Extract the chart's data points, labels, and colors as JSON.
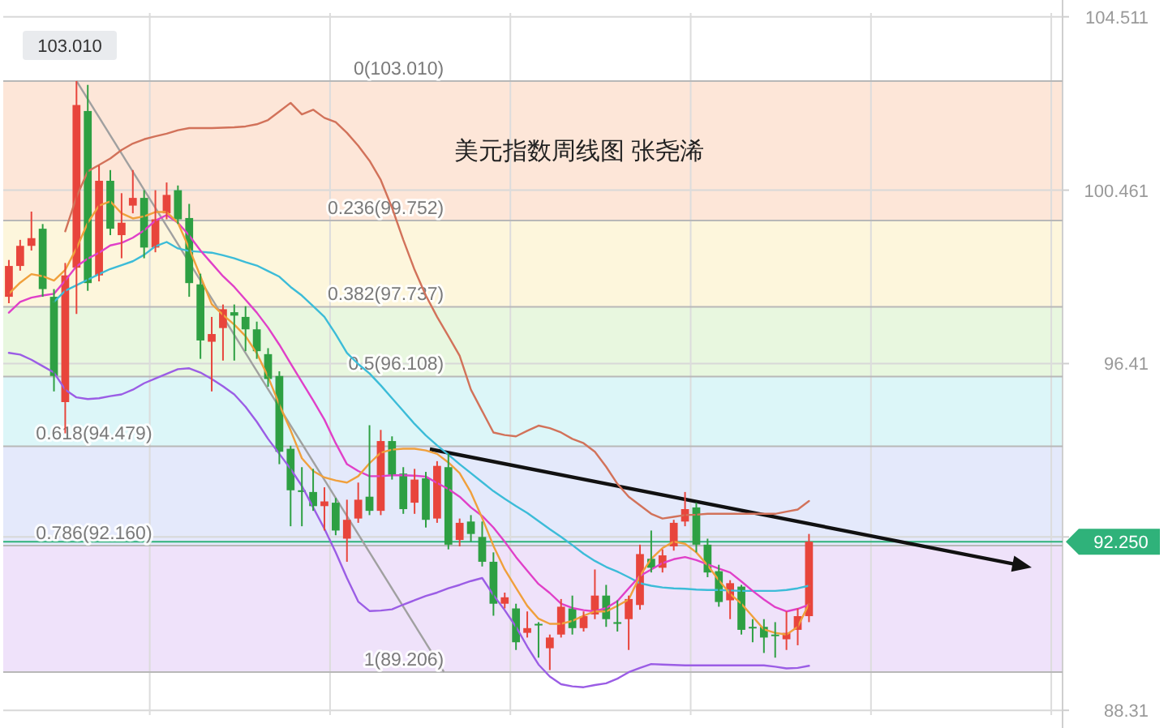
{
  "chart_data": {
    "type": "candlestick",
    "title": "美元指数周线图 张尧浠",
    "categories": [
      null,
      null,
      null,
      null,
      null,
      null,
      null,
      null,
      null,
      null,
      null,
      null,
      null,
      null,
      null,
      null,
      null,
      null,
      null,
      null,
      null,
      null,
      null,
      null,
      null,
      null,
      null,
      null,
      null,
      null,
      null,
      null,
      null,
      null,
      null,
      null,
      null,
      null,
      null,
      null,
      null,
      null,
      null,
      null,
      null,
      null,
      null,
      null,
      null,
      null,
      null,
      null,
      null,
      null,
      null,
      null,
      null,
      null,
      null,
      null,
      null,
      null,
      null,
      null,
      null,
      null,
      null,
      null,
      null,
      null,
      null,
      null,
      null,
      null,
      null,
      null,
      null,
      null,
      null,
      null,
      null,
      null,
      null,
      null,
      null,
      null,
      null,
      null,
      null,
      null,
      null,
      null,
      null,
      null
    ],
    "ohlc": [
      [
        97.97,
        98.83,
        97.82,
        98.69
      ],
      [
        98.69,
        99.3,
        98.58,
        99.16
      ],
      [
        99.16,
        99.96,
        99.05,
        99.34
      ],
      [
        99.56,
        99.67,
        97.97,
        98.15
      ],
      [
        97.97,
        98.15,
        95.76,
        96.12
      ],
      [
        95.51,
        98.76,
        94.78,
        98.47
      ],
      [
        98.65,
        103.01,
        97.57,
        102.45
      ],
      [
        102.31,
        102.92,
        98.11,
        98.29
      ],
      [
        98.47,
        101.04,
        98.33,
        100.68
      ],
      [
        100.68,
        100.93,
        99.41,
        99.56
      ],
      [
        99.41,
        100.39,
        98.87,
        99.7
      ],
      [
        100.1,
        100.93,
        99.92,
        100.28
      ],
      [
        100.28,
        100.46,
        98.87,
        99.12
      ],
      [
        99.12,
        100.46,
        99.01,
        99.78
      ],
      [
        99.92,
        100.64,
        99.78,
        100.35
      ],
      [
        100.46,
        100.57,
        99.67,
        99.78
      ],
      [
        99.81,
        100.14,
        97.97,
        98.29
      ],
      [
        98.26,
        98.51,
        96.52,
        96.95
      ],
      [
        96.92,
        97.5,
        95.76,
        97.1
      ],
      [
        97.24,
        97.79,
        96.48,
        97.68
      ],
      [
        97.61,
        97.79,
        96.48,
        97.53
      ],
      [
        97.5,
        97.75,
        96.7,
        97.21
      ],
      [
        97.21,
        97.39,
        96.52,
        96.7
      ],
      [
        96.63,
        96.77,
        95.87,
        96.05
      ],
      [
        96.12,
        96.23,
        94.06,
        94.35
      ],
      [
        94.42,
        94.49,
        92.61,
        93.45
      ],
      [
        93.45,
        93.99,
        92.61,
        93.41
      ],
      [
        93.41,
        93.95,
        92.97,
        93.08
      ],
      [
        93.08,
        93.52,
        92.51,
        93.19
      ],
      [
        93.16,
        93.27,
        92.4,
        92.51
      ],
      [
        92.32,
        93.23,
        91.78,
        92.76
      ],
      [
        92.79,
        93.63,
        92.69,
        93.23
      ],
      [
        93.3,
        94.97,
        92.87,
        92.97
      ],
      [
        92.97,
        94.86,
        92.87,
        94.6
      ],
      [
        94.6,
        94.71,
        93.7,
        93.81
      ],
      [
        93.84,
        93.99,
        92.9,
        93.01
      ],
      [
        93.16,
        93.95,
        92.9,
        93.7
      ],
      [
        93.73,
        93.88,
        92.58,
        92.76
      ],
      [
        92.79,
        94.13,
        92.69,
        94.02
      ],
      [
        93.99,
        94.31,
        92.07,
        92.18
      ],
      [
        92.29,
        92.79,
        92.14,
        92.69
      ],
      [
        92.72,
        92.87,
        92.25,
        92.43
      ],
      [
        92.36,
        92.72,
        91.67,
        91.78
      ],
      [
        91.78,
        92.0,
        90.52,
        90.8
      ],
      [
        90.8,
        91.06,
        90.69,
        90.95
      ],
      [
        90.69,
        90.8,
        89.72,
        89.9
      ],
      [
        90.12,
        90.62,
        90.01,
        90.23
      ],
      [
        90.33,
        90.37,
        89.54,
        90.3
      ],
      [
        89.76,
        90.08,
        89.25,
        90.01
      ],
      [
        90.08,
        90.91,
        90.01,
        90.73
      ],
      [
        90.69,
        90.99,
        90.08,
        90.23
      ],
      [
        90.23,
        90.62,
        90.15,
        90.51
      ],
      [
        90.55,
        91.6,
        90.44,
        90.99
      ],
      [
        90.99,
        91.24,
        90.26,
        90.44
      ],
      [
        90.37,
        90.88,
        90.15,
        90.33
      ],
      [
        90.44,
        90.99,
        89.72,
        90.91
      ],
      [
        90.77,
        92.18,
        90.66,
        91.96
      ],
      [
        91.85,
        92.51,
        91.53,
        91.64
      ],
      [
        91.64,
        92.07,
        91.53,
        91.93
      ],
      [
        92.14,
        92.76,
        92.04,
        92.69
      ],
      [
        92.72,
        93.41,
        92.61,
        93.01
      ],
      [
        93.05,
        93.16,
        92.0,
        92.18
      ],
      [
        92.18,
        92.32,
        91.42,
        91.53
      ],
      [
        91.56,
        91.71,
        90.73,
        90.84
      ],
      [
        90.88,
        91.35,
        90.44,
        91.28
      ],
      [
        91.2,
        91.24,
        90.08,
        90.19
      ],
      [
        90.26,
        90.44,
        89.9,
        90.23
      ],
      [
        90.26,
        90.44,
        89.65,
        90.01
      ],
      [
        90.08,
        90.37,
        89.54,
        90.05
      ],
      [
        89.97,
        90.62,
        89.72,
        90.12
      ],
      [
        90.19,
        90.69,
        89.83,
        90.51
      ],
      [
        90.51,
        92.43,
        90.37,
        92.25
      ],
      null,
      null,
      null,
      null,
      null,
      null,
      null,
      null,
      null,
      null,
      null,
      null,
      null,
      null,
      null,
      null,
      null,
      null,
      null,
      null,
      null,
      null
    ],
    "colors": [
      "#e8453c",
      "#e8453c",
      "#e8453c",
      "#2ea043",
      "#2ea043",
      "#e8453c",
      "#e8453c",
      "#2ea043",
      "#e8453c",
      "#2ea043",
      "#e8453c",
      "#e8453c",
      "#2ea043",
      "#e8453c",
      "#e8453c",
      "#2ea043",
      "#2ea043",
      "#2ea043",
      "#e8453c",
      "#e8453c",
      "#2ea043",
      "#2ea043",
      "#2ea043",
      "#2ea043",
      "#2ea043",
      "#2ea043",
      "#2ea043",
      "#2ea043",
      "#e8453c",
      "#2ea043",
      "#e8453c",
      "#e8453c",
      "#2ea043",
      "#e8453c",
      "#2ea043",
      "#2ea043",
      "#e8453c",
      "#2ea043",
      "#e8453c",
      "#2ea043",
      "#e8453c",
      "#2ea043",
      "#2ea043",
      "#2ea043",
      "#e8453c",
      "#2ea043",
      "#e8453c",
      "#2ea043",
      "#e8453c",
      "#e8453c",
      "#2ea043",
      "#e8453c",
      "#e8453c",
      "#2ea043",
      "#2ea043",
      "#e8453c",
      "#e8453c",
      "#2ea043",
      "#e8453c",
      "#e8453c",
      "#e8453c",
      "#2ea043",
      "#2ea043",
      "#2ea043",
      "#e8453c",
      "#2ea043",
      "#2ea043",
      "#2ea043",
      "#2ea043",
      "#e8453c",
      "#e8453c",
      "#e8453c",
      null,
      null,
      null,
      null,
      null,
      null,
      null,
      null,
      null,
      null,
      null,
      null,
      null,
      null,
      null,
      null,
      null,
      null,
      null,
      null,
      null,
      null
    ],
    "series": [
      {
        "type": "line",
        "color": "#d2725a",
        "values": [
          null,
          null,
          null,
          null,
          null,
          99.5,
          100.3,
          100.9,
          101.05,
          101.2,
          101.4,
          101.55,
          101.65,
          101.72,
          101.78,
          101.86,
          101.91,
          101.91,
          101.91,
          101.92,
          101.93,
          101.95,
          102.0,
          102.1,
          102.3,
          102.5,
          102.23,
          102.34,
          102.15,
          102.05,
          101.8,
          101.5,
          101.15,
          100.7,
          100.05,
          99.3,
          98.6,
          98.0,
          97.5,
          97.05,
          96.59,
          95.8,
          95.3,
          94.8,
          94.74,
          94.71,
          94.84,
          94.96,
          94.9,
          94.8,
          94.65,
          94.55,
          94.35,
          94.0,
          93.6,
          93.3,
          93.1,
          92.9,
          92.79,
          92.83,
          92.87,
          92.88,
          92.9,
          92.9,
          92.9,
          92.9,
          92.9,
          92.9,
          92.9,
          92.95,
          93.0,
          93.2,
          null,
          null,
          null,
          null,
          null,
          null,
          null,
          null,
          null,
          null,
          null,
          null,
          null,
          null,
          null,
          null,
          null,
          null,
          null,
          null,
          null,
          null
        ]
      },
      {
        "type": "line",
        "color": "#9b5de5",
        "values": [
          96.66,
          96.62,
          96.5,
          96.35,
          96.2,
          95.8,
          95.62,
          95.58,
          95.6,
          95.65,
          95.69,
          95.8,
          95.95,
          96.06,
          96.17,
          96.28,
          96.3,
          96.2,
          96.05,
          95.88,
          95.69,
          95.4,
          95.05,
          94.65,
          94.3,
          93.95,
          93.55,
          93.05,
          92.55,
          92.0,
          91.4,
          90.85,
          90.63,
          90.64,
          90.67,
          90.78,
          90.88,
          90.98,
          91.06,
          91.16,
          91.24,
          91.33,
          91.4,
          91.0,
          90.65,
          90.26,
          89.8,
          89.38,
          89.1,
          88.92,
          88.87,
          88.85,
          88.9,
          88.94,
          89.05,
          89.2,
          89.3,
          89.39,
          89.38,
          89.37,
          89.36,
          89.36,
          89.36,
          89.36,
          89.36,
          89.36,
          89.36,
          89.36,
          89.33,
          89.29,
          89.3,
          89.35,
          null,
          null,
          null,
          null,
          null,
          null,
          null,
          null,
          null,
          null,
          null,
          null,
          null,
          null,
          null,
          null,
          null,
          null,
          null,
          null,
          null,
          null
        ]
      },
      {
        "type": "line",
        "color": "#3cbcd8",
        "values": [
          null,
          null,
          null,
          null,
          97.85,
          98.11,
          98.24,
          98.37,
          98.5,
          98.62,
          98.71,
          98.8,
          98.95,
          99.15,
          99.25,
          99.1,
          99.04,
          99.02,
          99.0,
          98.94,
          98.87,
          98.78,
          98.7,
          98.57,
          98.44,
          98.2,
          98.0,
          97.75,
          97.5,
          97.1,
          96.66,
          96.4,
          96.18,
          95.9,
          95.6,
          95.3,
          95.0,
          94.73,
          94.5,
          94.28,
          94.06,
          93.85,
          93.64,
          93.43,
          93.25,
          93.08,
          92.92,
          92.73,
          92.54,
          92.36,
          92.17,
          91.97,
          91.8,
          91.66,
          91.55,
          91.42,
          91.28,
          91.22,
          91.18,
          91.16,
          91.15,
          91.13,
          91.12,
          91.12,
          91.11,
          91.1,
          91.1,
          91.1,
          91.1,
          91.12,
          91.16,
          91.22,
          null,
          null,
          null,
          null,
          null,
          null,
          null,
          null,
          null,
          null,
          null,
          null,
          null,
          null,
          null,
          null,
          null,
          null,
          null,
          null,
          null,
          null
        ]
      },
      {
        "type": "line",
        "color": "#e040c8",
        "values": [
          97.6,
          97.85,
          97.95,
          98.0,
          98.04,
          98.35,
          98.68,
          98.86,
          99.0,
          99.17,
          99.23,
          99.35,
          99.52,
          99.75,
          99.88,
          99.7,
          99.4,
          99.05,
          98.75,
          98.45,
          98.2,
          97.9,
          97.6,
          97.25,
          96.85,
          96.41,
          95.98,
          95.55,
          95.1,
          94.55,
          94.06,
          93.9,
          93.78,
          93.78,
          93.8,
          93.8,
          93.79,
          93.77,
          93.62,
          93.48,
          93.3,
          93.05,
          92.85,
          92.58,
          92.25,
          91.89,
          91.57,
          91.26,
          91.05,
          90.8,
          90.7,
          90.65,
          90.62,
          90.7,
          90.86,
          91.16,
          91.45,
          91.6,
          91.75,
          91.84,
          91.89,
          91.82,
          91.72,
          91.62,
          91.53,
          91.32,
          91.1,
          90.9,
          90.72,
          90.62,
          90.68,
          90.78,
          null,
          null,
          null,
          null,
          null,
          null,
          null,
          null,
          null,
          null,
          null,
          null,
          null,
          null,
          null,
          null,
          null,
          null,
          null,
          null,
          null,
          null
        ]
      },
      {
        "type": "line",
        "color": "#f0a03c",
        "values": [
          98.04,
          98.3,
          98.5,
          98.45,
          98.35,
          98.6,
          99.1,
          99.7,
          100.1,
          100.2,
          99.92,
          99.8,
          99.85,
          99.95,
          99.95,
          99.7,
          99.1,
          98.45,
          97.8,
          97.55,
          97.32,
          97.05,
          96.65,
          96.1,
          95.45,
          94.85,
          94.2,
          93.9,
          93.75,
          93.68,
          93.63,
          93.78,
          94.08,
          94.33,
          94.4,
          94.42,
          94.42,
          94.38,
          94.3,
          94.1,
          93.85,
          93.4,
          92.8,
          92.15,
          91.6,
          91.17,
          90.75,
          90.45,
          90.33,
          90.33,
          90.4,
          90.52,
          90.62,
          90.62,
          90.75,
          90.9,
          91.45,
          91.85,
          92.1,
          92.25,
          92.2,
          92.0,
          91.7,
          91.35,
          91.03,
          90.8,
          90.5,
          90.2,
          90.12,
          90.08,
          90.26,
          90.8,
          null,
          null,
          null,
          null,
          null,
          null,
          null,
          null,
          null,
          null,
          null,
          null,
          null,
          null,
          null,
          null,
          null,
          null,
          null,
          null,
          null,
          null
        ]
      }
    ],
    "ylim": [
      88.2,
      104.6
    ],
    "yticks": [
      104.511,
      100.461,
      96.41,
      {
        "value": 92.36,
        "label": null
      },
      88.31
    ],
    "tick_labels": "y",
    "grid": true,
    "bands": [
      {
        "axis": "y",
        "from": 99.752,
        "to": 103.01,
        "color": "#fde6d8"
      },
      {
        "axis": "y",
        "from": 97.737,
        "to": 99.752,
        "color": "#fdf6dc"
      },
      {
        "axis": "y",
        "from": 96.108,
        "to": 97.737,
        "color": "#e8f7df"
      },
      {
        "axis": "y",
        "from": 94.479,
        "to": 96.108,
        "color": "#dcf6f8"
      },
      {
        "axis": "y",
        "from": 92.16,
        "to": 94.479,
        "color": "#e4e9fb"
      },
      {
        "axis": "y",
        "from": 89.206,
        "to": 92.16,
        "color": "#efe2fa"
      }
    ],
    "ref_lines": [
      {
        "axis": "y",
        "value": 103.01,
        "label": "0(103.010)",
        "color": "#b8b8b8"
      },
      {
        "axis": "y",
        "value": 99.752,
        "label": "0.236(99.752)",
        "color": "#b8b8b8"
      },
      {
        "axis": "y",
        "value": 97.737,
        "label": "0.382(97.737)",
        "color": "#b8b8b8"
      },
      {
        "axis": "y",
        "value": 96.108,
        "label": "0.5(96.108)",
        "color": "#b8b8b8"
      },
      {
        "axis": "y",
        "value": 94.479,
        "label": "0.618(94.479)",
        "color": "#b8b8b8"
      },
      {
        "axis": "y",
        "value": 92.16,
        "label": "0.786(92.160)",
        "color": "#b8b8b8"
      },
      {
        "axis": "y",
        "value": 89.206,
        "label": "1(89.206)",
        "color": "#b8b8b8"
      },
      {
        "axis": "y",
        "value": 92.25,
        "label": "92.250",
        "color": "#2fb27a"
      }
    ],
    "annotations": [
      {
        "text": "103.010",
        "y": 103.01
      }
    ]
  }
}
